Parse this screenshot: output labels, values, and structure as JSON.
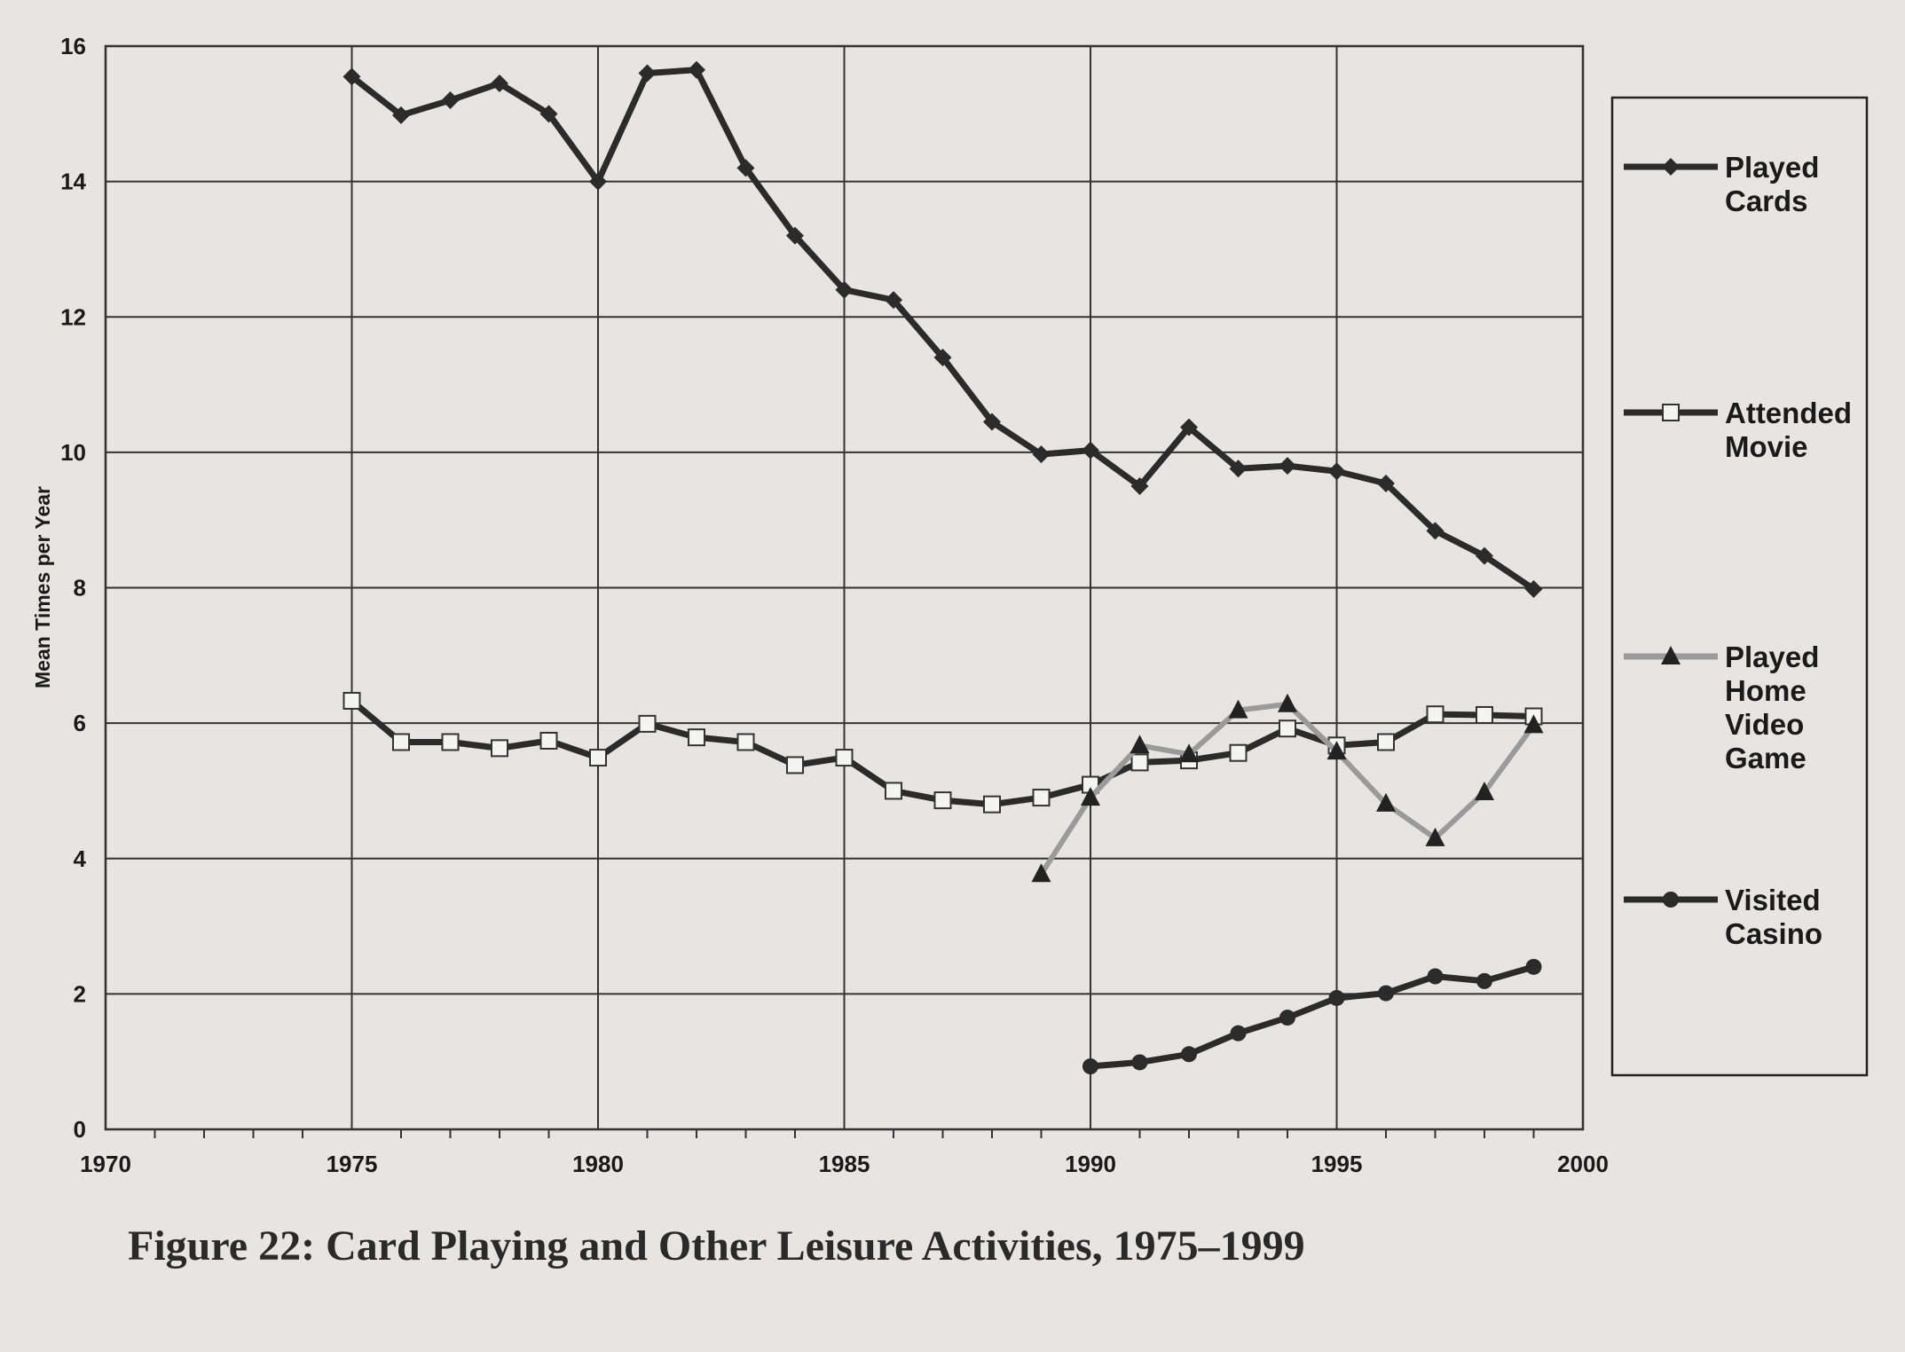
{
  "chart_data": {
    "type": "line",
    "title": "Figure 22: Card Playing and Other Leisure Activities, 1975–1999",
    "xlabel": "",
    "ylabel": "Mean Times per Year",
    "xlim": [
      1970,
      2000
    ],
    "ylim": [
      0,
      16
    ],
    "xticks": [
      1970,
      1975,
      1980,
      1985,
      1990,
      1995,
      2000
    ],
    "yticks": [
      0,
      2,
      4,
      6,
      8,
      10,
      12,
      14,
      16
    ],
    "grid": true,
    "legend_position": "right",
    "series": [
      {
        "name": "Played Cards",
        "legend": [
          "Played",
          "Cards"
        ],
        "marker": "diamond",
        "color": "#2b2b2b",
        "x": [
          1975,
          1976,
          1977,
          1978,
          1979,
          1980,
          1981,
          1982,
          1983,
          1984,
          1985,
          1986,
          1987,
          1988,
          1989,
          1990,
          1991,
          1992,
          1993,
          1994,
          1995,
          1996,
          1997,
          1998,
          1999
        ],
        "y": [
          15.55,
          14.98,
          15.2,
          15.45,
          15.0,
          14.0,
          15.6,
          15.65,
          14.2,
          13.2,
          12.4,
          12.25,
          11.4,
          10.45,
          9.97,
          10.03,
          9.5,
          10.37,
          9.76,
          9.8,
          9.72,
          9.54,
          8.84,
          8.47,
          7.98
        ]
      },
      {
        "name": "Attended Movie",
        "legend": [
          "Attended",
          "Movie"
        ],
        "marker": "square-open",
        "color": "#2b2b2b",
        "x": [
          1975,
          1976,
          1977,
          1978,
          1979,
          1980,
          1981,
          1982,
          1983,
          1984,
          1985,
          1986,
          1987,
          1988,
          1989,
          1990,
          1991,
          1992,
          1993,
          1994,
          1995,
          1996,
          1997,
          1998,
          1999
        ],
        "y": [
          6.33,
          5.72,
          5.72,
          5.63,
          5.74,
          5.49,
          5.99,
          5.79,
          5.72,
          5.38,
          5.49,
          5.0,
          4.86,
          4.8,
          4.9,
          5.09,
          5.42,
          5.45,
          5.56,
          5.92,
          5.67,
          5.72,
          6.13,
          6.12,
          6.1
        ]
      },
      {
        "name": "Played Home Video Game",
        "legend": [
          "Played",
          "Home",
          "Video",
          "Game"
        ],
        "marker": "triangle",
        "color": "#9a9a9a",
        "x": [
          1989,
          1990,
          1991,
          1992,
          1993,
          1994,
          1995,
          1996,
          1997,
          1998,
          1999
        ],
        "y": [
          3.77,
          4.9,
          5.67,
          5.54,
          6.19,
          6.28,
          5.58,
          4.81,
          4.3,
          4.98,
          5.97
        ]
      },
      {
        "name": "Visited Casino",
        "legend": [
          "Visited",
          "Casino"
        ],
        "marker": "circle",
        "color": "#2b2b2b",
        "x": [
          1990,
          1991,
          1992,
          1993,
          1994,
          1995,
          1996,
          1997,
          1998,
          1999
        ],
        "y": [
          0.93,
          0.99,
          1.11,
          1.42,
          1.65,
          1.94,
          2.01,
          2.26,
          2.19,
          2.4
        ]
      }
    ]
  }
}
